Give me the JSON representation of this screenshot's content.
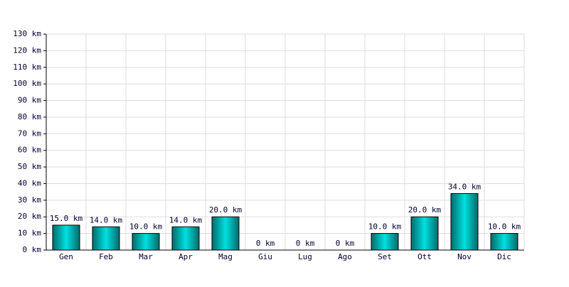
{
  "chart_data": {
    "type": "bar",
    "categories": [
      "Gen",
      "Feb",
      "Mar",
      "Apr",
      "Mag",
      "Giu",
      "Lug",
      "Ago",
      "Set",
      "Ott",
      "Nov",
      "Dic"
    ],
    "values": [
      15,
      14,
      10,
      14,
      20,
      0,
      0,
      0,
      10,
      20,
      34,
      10
    ],
    "value_labels": [
      "15.0 km",
      "14.0 km",
      "10.0 km",
      "14.0 km",
      "20.0 km",
      "0 km",
      "0 km",
      "0 km",
      "10.0 km",
      "20.0 km",
      "34.0 km",
      "10.0 km"
    ],
    "color": "#00e0e0",
    "ylim": [
      0,
      130
    ],
    "yticks": [
      {
        "value": 0,
        "label": "0 km"
      },
      {
        "value": 10,
        "label": "10 km"
      },
      {
        "value": 20,
        "label": "20 km"
      },
      {
        "value": 30,
        "label": "30 km"
      },
      {
        "value": 40,
        "label": "40 km"
      },
      {
        "value": 50,
        "label": "50 km"
      },
      {
        "value": 60,
        "label": "60 km"
      },
      {
        "value": 70,
        "label": "70 km"
      },
      {
        "value": 80,
        "label": "80 km"
      },
      {
        "value": 90,
        "label": "90 km"
      },
      {
        "value": 100,
        "label": "100 km"
      },
      {
        "value": 110,
        "label": "110 km"
      },
      {
        "value": 120,
        "label": "120 km"
      },
      {
        "value": 130,
        "label": "130 km"
      }
    ],
    "grid": true
  }
}
